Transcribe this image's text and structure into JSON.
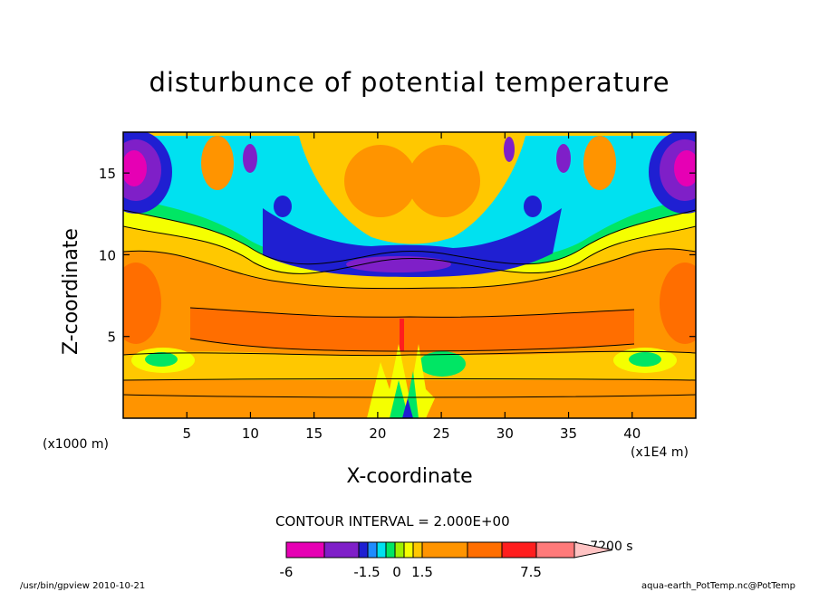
{
  "chart_data": {
    "type": "heatmap",
    "title": "disturbunce of potential temperature",
    "xlabel": "X-coordinate",
    "ylabel": "Z-coordinate",
    "x_unit": "(x1000 m)",
    "y_unit": "(x1E4 m)",
    "xlim": [
      0,
      45
    ],
    "ylim": [
      0,
      17.5
    ],
    "x_ticks": [
      5,
      10,
      15,
      20,
      25,
      30,
      35,
      40
    ],
    "y_ticks": [
      5,
      10,
      15
    ],
    "contour_interval": "CONTOUR INTERVAL = 2.000E+00",
    "time": "t=7200 s",
    "colorbar": {
      "colors": [
        "#e600b4",
        "#7f1fc8",
        "#1f1fd2",
        "#1f8cff",
        "#00e1f0",
        "#00e664",
        "#9ff000",
        "#f5ff00",
        "#ffc800",
        "#ff9400",
        "#ff6e00",
        "#ff1e1e",
        "#ff7a7a",
        "#ffc3c3"
      ],
      "tick_labels": [
        "-6",
        "-1.5",
        "0",
        "1.5",
        "7.5"
      ]
    }
  },
  "footer": {
    "left": "/usr/bin/gpview   2010-10-21",
    "right": "aqua-earth_PotTemp.nc@PotTemp"
  }
}
